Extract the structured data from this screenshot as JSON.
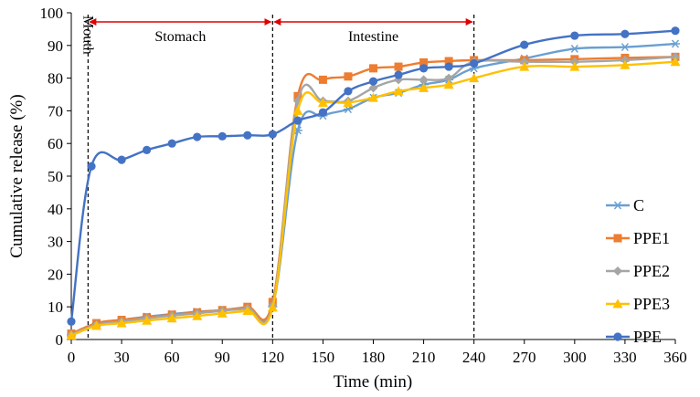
{
  "chart_data": {
    "type": "line",
    "title": "",
    "xlabel": "Time (min)",
    "ylabel": "Cumulative release (%)",
    "xlim": [
      0,
      360
    ],
    "ylim": [
      0,
      100
    ],
    "xticks": [
      0,
      30,
      60,
      90,
      120,
      150,
      180,
      210,
      240,
      270,
      300,
      330,
      360
    ],
    "yticks": [
      0,
      10,
      20,
      30,
      40,
      50,
      60,
      70,
      80,
      90,
      100
    ],
    "grid": false,
    "legend_position": "right",
    "regions": [
      {
        "label": "Mouth",
        "boundary": 10
      },
      {
        "label": "Stomach",
        "from": 10,
        "to": 120
      },
      {
        "label": "Intestine",
        "from": 120,
        "to": 240
      }
    ],
    "region_lines": [
      10,
      120,
      240
    ],
    "series": [
      {
        "name": "C",
        "color": "#6a9fd1",
        "marker": "star",
        "x": [
          0,
          15,
          30,
          45,
          60,
          75,
          90,
          105,
          120,
          135,
          150,
          165,
          180,
          195,
          210,
          225,
          240,
          270,
          300,
          330,
          360
        ],
        "values": [
          1.5,
          5.0,
          6.0,
          7.0,
          7.8,
          8.5,
          9.0,
          9.8,
          10.0,
          64.0,
          68.5,
          70.5,
          74.0,
          75.5,
          78.0,
          79.5,
          83.0,
          86.0,
          89.0,
          89.5,
          90.5
        ]
      },
      {
        "name": "PPE1",
        "color": "#ed7d31",
        "marker": "square",
        "x": [
          0,
          15,
          30,
          45,
          60,
          75,
          90,
          105,
          120,
          135,
          150,
          165,
          180,
          195,
          210,
          225,
          240,
          270,
          300,
          330,
          360
        ],
        "values": [
          1.8,
          5.0,
          6.0,
          6.8,
          7.6,
          8.3,
          9.0,
          10.0,
          11.5,
          74.5,
          79.5,
          80.5,
          83.0,
          83.5,
          84.8,
          85.2,
          85.5,
          85.5,
          85.8,
          86.2,
          86.5
        ]
      },
      {
        "name": "PPE2",
        "color": "#a5a5a5",
        "marker": "diamond",
        "x": [
          0,
          15,
          30,
          45,
          60,
          75,
          90,
          105,
          120,
          135,
          150,
          165,
          180,
          195,
          210,
          225,
          240,
          270,
          300,
          330,
          360
        ],
        "values": [
          1.5,
          4.5,
          5.5,
          6.5,
          7.3,
          8.0,
          8.8,
          9.5,
          10.5,
          73.0,
          73.0,
          73.0,
          77.0,
          79.5,
          79.5,
          80.0,
          85.0,
          85.0,
          85.0,
          85.5,
          86.5
        ]
      },
      {
        "name": "PPE3",
        "color": "#ffc000",
        "marker": "triangle",
        "x": [
          0,
          15,
          30,
          45,
          60,
          75,
          90,
          105,
          120,
          135,
          150,
          165,
          180,
          195,
          210,
          225,
          240,
          270,
          300,
          330,
          360
        ],
        "values": [
          1.2,
          4.2,
          5.0,
          5.8,
          6.5,
          7.2,
          8.0,
          8.8,
          9.8,
          70.0,
          72.5,
          72.5,
          74.0,
          76.0,
          77.0,
          78.0,
          80.0,
          83.5,
          83.5,
          84.0,
          85.0
        ]
      },
      {
        "name": "PPE",
        "color": "#4472c4",
        "marker": "circle",
        "x": [
          0,
          12,
          30,
          45,
          60,
          75,
          90,
          105,
          120,
          135,
          150,
          165,
          180,
          195,
          210,
          225,
          240,
          270,
          300,
          330,
          360
        ],
        "values": [
          5.5,
          53.0,
          55.0,
          58.0,
          60.0,
          62.0,
          62.2,
          62.5,
          62.8,
          67.0,
          69.5,
          76.0,
          79.0,
          81.0,
          83.0,
          83.5,
          84.5,
          90.2,
          93.0,
          93.5,
          94.5
        ]
      }
    ]
  }
}
